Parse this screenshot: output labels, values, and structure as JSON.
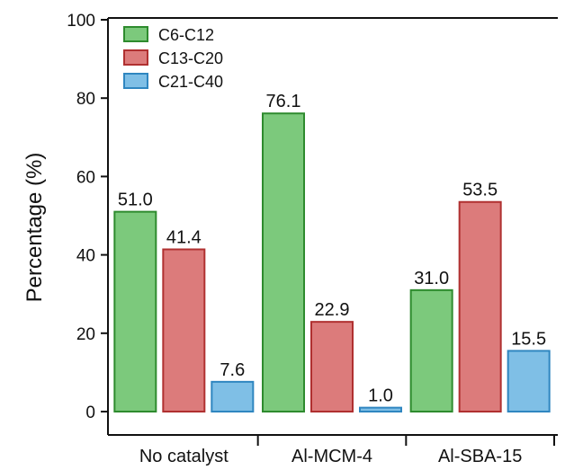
{
  "chart_data": {
    "type": "bar",
    "categories": [
      "No catalyst",
      "Al-MCM-4",
      "Al-SBA-15"
    ],
    "series": [
      {
        "name": "C6-C12",
        "values": [
          51.0,
          76.1,
          31.0
        ],
        "labels": [
          "51.0",
          "76.1",
          "31.0"
        ],
        "color": "#7cc97c",
        "edge": "#2e8b2e"
      },
      {
        "name": "C13-C20",
        "values": [
          41.4,
          22.9,
          53.5
        ],
        "labels": [
          "41.4",
          "22.9",
          "53.5"
        ],
        "color": "#dc7b7b",
        "edge": "#b03030"
      },
      {
        "name": "C21-C40",
        "values": [
          7.6,
          1.0,
          15.5
        ],
        "labels": [
          "7.6",
          "1.0",
          "15.5"
        ],
        "color": "#7fbfe6",
        "edge": "#2f86c0"
      }
    ],
    "title": "",
    "xlabel": "",
    "ylabel": "Percentage (%)",
    "ylim": [
      0,
      100
    ],
    "yticks": [
      0,
      20,
      40,
      60,
      80,
      100
    ],
    "grid": false,
    "legend": "top-left"
  }
}
